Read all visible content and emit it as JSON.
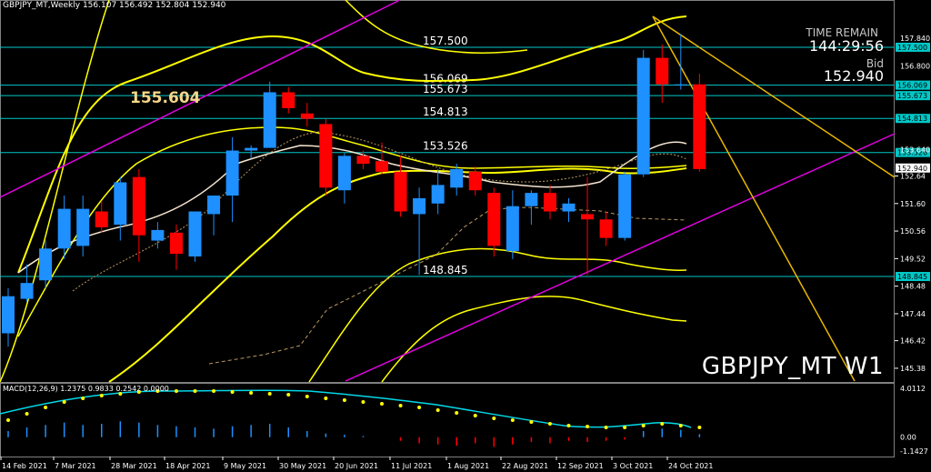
{
  "header": {
    "symbol_timeframe": "GBPJPY_MT,Weekly",
    "ohlc": "156.107 156.492 152.804 152.940"
  },
  "macd_header": "MACD(12,26,9) 1.2375 0.9833 0.2542 0.0000",
  "info": {
    "time_remain_label": "TIME REMAIN",
    "time_remain_value": "144:29:56",
    "bid_label": "Bid",
    "bid_value": "152.940"
  },
  "watermark": "GBPJPY_MT W1",
  "annotation_price": "155.604",
  "colors": {
    "bull": "#1e90ff",
    "bear": "#ff0000",
    "level_line": "#00c8c8",
    "band": "#ffff00",
    "trend_magenta": "#e000e0",
    "trend_yellow": "#e8b800",
    "macd_signal": "#00d8e8",
    "macd_dot": "#ffff00"
  },
  "chart_data": {
    "type": "candlestick",
    "title": "GBPJPY_MT,Weekly",
    "x_tick_labels": [
      "14 Feb 2021",
      "7 Mar 2021",
      "28 Mar 2021",
      "18 Apr 2021",
      "9 May 2021",
      "30 May 2021",
      "20 Jun 2021",
      "11 Jul 2021",
      "1 Aug 2021",
      "22 Aug 2021",
      "12 Sep 2021",
      "3 Oct 2021",
      "24 Oct 2021"
    ],
    "y_tick_labels": [
      157.5,
      156.069,
      155.673,
      154.813,
      153.526,
      152.94,
      152.64,
      151.6,
      150.56,
      149.52,
      148.845,
      148.48,
      147.44,
      146.42,
      145.38
    ],
    "ylim": [
      145.0,
      158.7
    ],
    "price_axis_extra_ticks": [
      "157.840",
      "156.800",
      "153.640"
    ],
    "horizontal_levels": [
      {
        "label": "157.500",
        "value": 157.5
      },
      {
        "label": "156.069",
        "value": 156.069
      },
      {
        "label": "155.673",
        "value": 155.673
      },
      {
        "label": "154.813",
        "value": 154.813
      },
      {
        "label": "153.526",
        "value": 153.526
      },
      {
        "label": "148.845",
        "value": 148.845
      }
    ],
    "current_price": 152.94,
    "candles": [
      {
        "o": 146.7,
        "h": 148.4,
        "l": 146.2,
        "c": 148.1
      },
      {
        "o": 148.0,
        "h": 149.3,
        "l": 147.9,
        "c": 148.6
      },
      {
        "o": 148.7,
        "h": 150.2,
        "l": 148.4,
        "c": 149.9
      },
      {
        "o": 149.9,
        "h": 151.9,
        "l": 149.5,
        "c": 151.4
      },
      {
        "o": 150.0,
        "h": 151.9,
        "l": 149.6,
        "c": 151.4
      },
      {
        "o": 151.3,
        "h": 151.7,
        "l": 150.5,
        "c": 150.7
      },
      {
        "o": 150.8,
        "h": 152.6,
        "l": 150.2,
        "c": 152.4
      },
      {
        "o": 152.6,
        "h": 152.9,
        "l": 149.4,
        "c": 150.4
      },
      {
        "o": 150.2,
        "h": 150.9,
        "l": 149.9,
        "c": 150.6
      },
      {
        "o": 150.5,
        "h": 150.8,
        "l": 149.1,
        "c": 149.7
      },
      {
        "o": 149.6,
        "h": 151.3,
        "l": 149.4,
        "c": 151.3
      },
      {
        "o": 151.2,
        "h": 151.8,
        "l": 150.4,
        "c": 151.9
      },
      {
        "o": 151.9,
        "h": 154.1,
        "l": 150.9,
        "c": 153.6
      },
      {
        "o": 153.6,
        "h": 153.8,
        "l": 153.3,
        "c": 153.7
      },
      {
        "o": 153.7,
        "h": 156.2,
        "l": 153.7,
        "c": 155.8
      },
      {
        "o": 155.8,
        "h": 156.0,
        "l": 155.0,
        "c": 155.2
      },
      {
        "o": 155.0,
        "h": 155.4,
        "l": 154.5,
        "c": 154.8
      },
      {
        "o": 154.6,
        "h": 154.8,
        "l": 151.9,
        "c": 152.2
      },
      {
        "o": 152.1,
        "h": 153.5,
        "l": 151.6,
        "c": 153.4
      },
      {
        "o": 153.4,
        "h": 153.6,
        "l": 152.9,
        "c": 153.1
      },
      {
        "o": 153.2,
        "h": 153.9,
        "l": 152.7,
        "c": 152.8
      },
      {
        "o": 152.8,
        "h": 153.4,
        "l": 151.1,
        "c": 151.3
      },
      {
        "o": 151.2,
        "h": 152.2,
        "l": 148.9,
        "c": 151.8
      },
      {
        "o": 151.6,
        "h": 152.9,
        "l": 151.2,
        "c": 152.3
      },
      {
        "o": 152.2,
        "h": 153.1,
        "l": 151.9,
        "c": 152.9
      },
      {
        "o": 152.8,
        "h": 153.0,
        "l": 151.9,
        "c": 152.1
      },
      {
        "o": 152.0,
        "h": 152.2,
        "l": 149.6,
        "c": 150.0
      },
      {
        "o": 149.8,
        "h": 152.1,
        "l": 149.5,
        "c": 151.5
      },
      {
        "o": 151.5,
        "h": 152.1,
        "l": 150.8,
        "c": 152.0
      },
      {
        "o": 152.0,
        "h": 152.3,
        "l": 151.0,
        "c": 151.3
      },
      {
        "o": 151.3,
        "h": 151.8,
        "l": 150.9,
        "c": 151.6
      },
      {
        "o": 151.2,
        "h": 152.6,
        "l": 148.9,
        "c": 151.0
      },
      {
        "o": 151.0,
        "h": 151.3,
        "l": 150.0,
        "c": 150.3
      },
      {
        "o": 150.3,
        "h": 152.8,
        "l": 150.2,
        "c": 152.7
      },
      {
        "o": 152.7,
        "h": 157.4,
        "l": 152.6,
        "c": 157.1
      },
      {
        "o": 157.1,
        "h": 157.6,
        "l": 155.4,
        "c": 156.1
      },
      {
        "o": 156.1,
        "h": 158.0,
        "l": 155.9,
        "c": 156.1
      },
      {
        "o": 156.1,
        "h": 156.5,
        "l": 152.8,
        "c": 152.9
      }
    ],
    "macd": {
      "label": "MACD(12,26,9)",
      "values": {
        "main": 1.2375,
        "signal": 0.9833,
        "histogram": 0.2542
      },
      "ylim": [
        -1.1427,
        4.0112
      ],
      "y_tick_labels": [
        "4.0112",
        "0.00",
        "-1.1427"
      ]
    }
  }
}
